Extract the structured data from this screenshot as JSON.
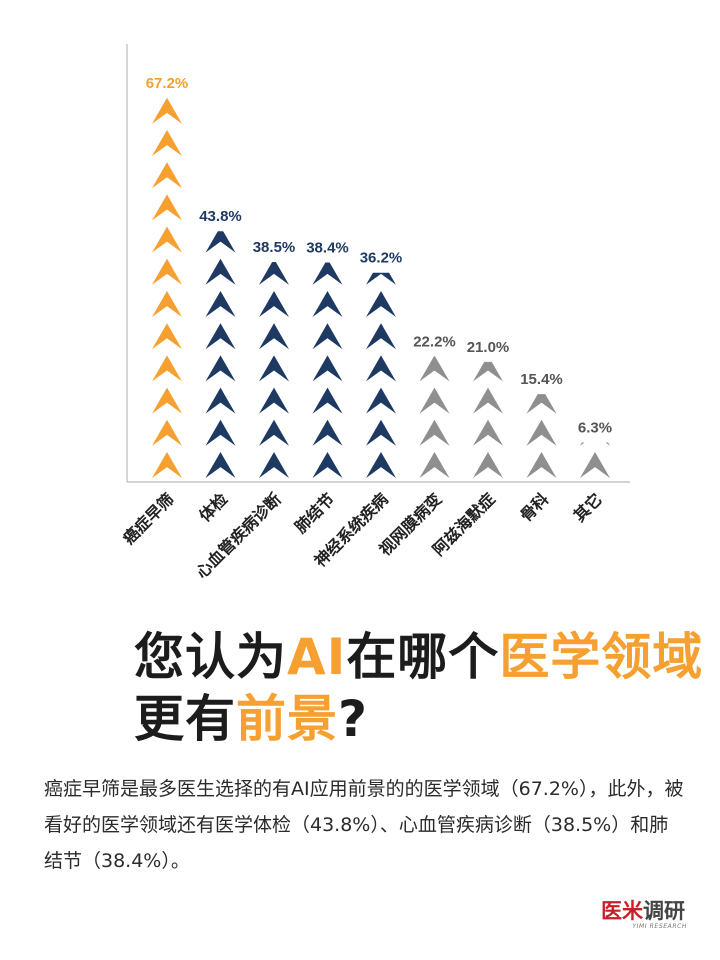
{
  "chart_data": {
    "type": "bar",
    "categories": [
      "癌症早筛",
      "体检",
      "心血管疾病诊断",
      "肺结节",
      "神经系统疾病",
      "视网膜病变",
      "阿兹海默症",
      "骨科",
      "其它"
    ],
    "values": [
      67.2,
      43.8,
      38.5,
      38.4,
      36.2,
      22.2,
      21.0,
      15.4,
      6.3
    ],
    "value_labels": [
      "67.2%",
      "43.8%",
      "38.5%",
      "38.4%",
      "36.2%",
      "22.2%",
      "21.0%",
      "15.4%",
      "6.3%"
    ],
    "colors": [
      "#f5a030",
      "#1e3a63",
      "#1e3a63",
      "#1e3a63",
      "#1e3a63",
      "#8f8f8f",
      "#8f8f8f",
      "#8f8f8f",
      "#8f8f8f"
    ],
    "label_colors": [
      "#f5a030",
      "#1e3a63",
      "#1e3a63",
      "#1e3a63",
      "#1e3a63",
      "#555555",
      "#555555",
      "#555555",
      "#555555"
    ],
    "ylim": [
      0,
      70
    ],
    "grid": false
  },
  "heading": {
    "line1_part1": "您认为",
    "line1_hl1": "AI",
    "line1_part2": "在哪个",
    "line1_hl2": "医学领域",
    "line2_part1": "更有",
    "line2_hl": "前景",
    "line2_part2": "?"
  },
  "description": "癌症早筛是最多医生选择的有AI应用前景的的医学领域（67.2%），此外，被看好的医学领域还有医学体检（43.8%）、心血管疾病诊断（38.5%）和肺结节（38.4%）。",
  "logo": {
    "part1": "医米",
    "part2": "调研",
    "sub": "YIMI RESEARCH"
  }
}
